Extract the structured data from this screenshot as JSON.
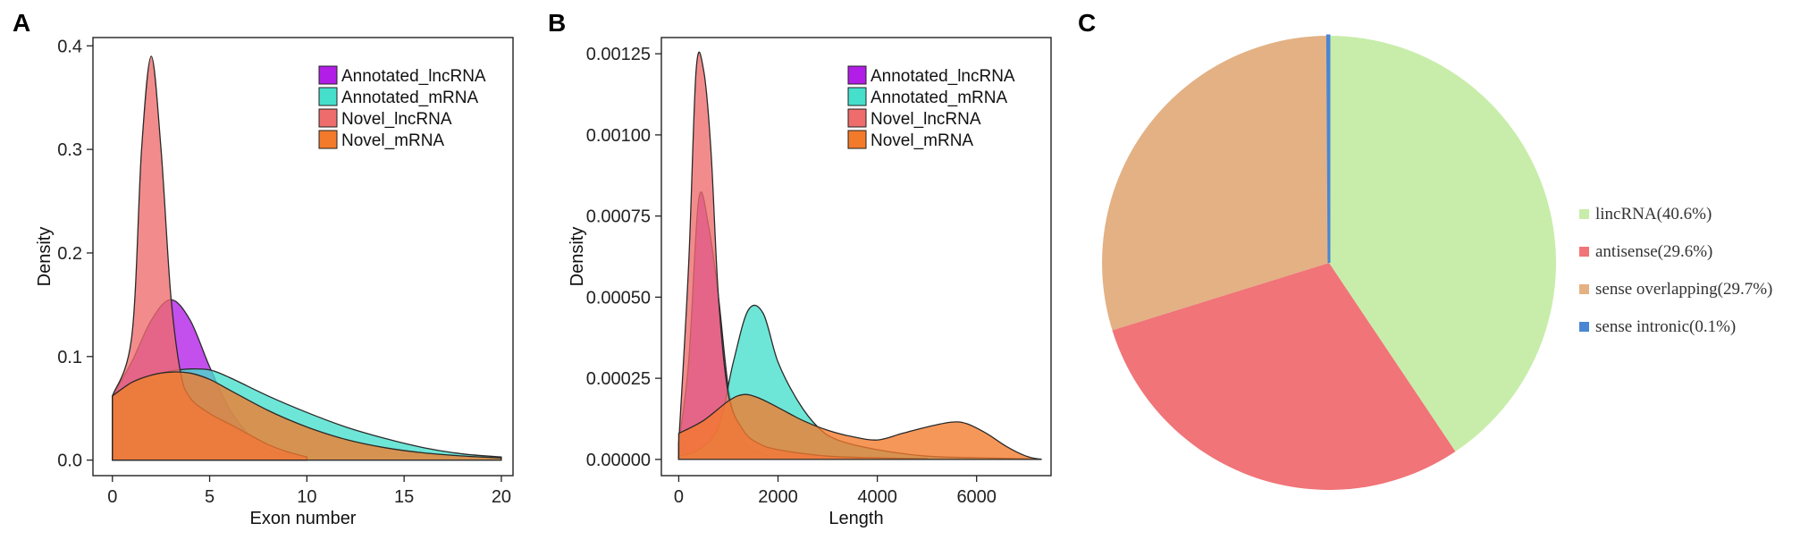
{
  "panels": {
    "a": "A",
    "b": "B",
    "c": "C"
  },
  "chart_data": [
    {
      "type": "area",
      "id": "A",
      "title": "",
      "xlabel": "Exon number",
      "ylabel": "Density",
      "xlim": [
        -1,
        20.6
      ],
      "ylim": [
        -0.015,
        0.408
      ],
      "xticks": [
        "0",
        "5",
        "10",
        "15",
        "20"
      ],
      "yticks": [
        "0.0",
        "0.1",
        "0.2",
        "0.3",
        "0.4"
      ],
      "legend": "top-right",
      "series": [
        {
          "name": "Annotated_lncRNA",
          "color": "#b21ee8",
          "x": [
            0,
            1,
            2,
            3,
            4,
            5,
            6,
            7,
            8,
            10
          ],
          "y": [
            0.062,
            0.095,
            0.135,
            0.155,
            0.135,
            0.09,
            0.05,
            0.025,
            0.01,
            0.002
          ]
        },
        {
          "name": "Annotated_mRNA",
          "color": "#45dfcc",
          "x": [
            0,
            1,
            2,
            3,
            4,
            5,
            6,
            8,
            10,
            12,
            14,
            16,
            18,
            20
          ],
          "y": [
            0.062,
            0.075,
            0.082,
            0.086,
            0.088,
            0.087,
            0.08,
            0.062,
            0.046,
            0.032,
            0.021,
            0.012,
            0.006,
            0.003
          ]
        },
        {
          "name": "Novel_lncRNA",
          "color": "#ee6c6c",
          "x": [
            0,
            1,
            1.5,
            2,
            2.5,
            3,
            3.5,
            4,
            5,
            6,
            7,
            8,
            9,
            10
          ],
          "y": [
            0.062,
            0.12,
            0.3,
            0.39,
            0.3,
            0.16,
            0.085,
            0.06,
            0.045,
            0.035,
            0.025,
            0.015,
            0.008,
            0.003
          ]
        },
        {
          "name": "Novel_mRNA",
          "color": "#f37a2b",
          "x": [
            0,
            1,
            2,
            3,
            4,
            5,
            6,
            8,
            10,
            12,
            14,
            16,
            18,
            20
          ],
          "y": [
            0.062,
            0.075,
            0.082,
            0.085,
            0.084,
            0.078,
            0.068,
            0.048,
            0.032,
            0.02,
            0.012,
            0.007,
            0.004,
            0.002
          ]
        }
      ]
    },
    {
      "type": "area",
      "id": "B",
      "title": "",
      "xlabel": "Length",
      "ylabel": "Density",
      "xlim": [
        -350,
        7500
      ],
      "ylim": [
        -5e-05,
        0.0013
      ],
      "xticks": [
        "0",
        "2000",
        "4000",
        "6000"
      ],
      "yticks": [
        "0.00000",
        "0.00025",
        "0.00050",
        "0.00075",
        "0.00100",
        "0.00125"
      ],
      "legend": "top-right",
      "series": [
        {
          "name": "Annotated_lncRNA",
          "color": "#b21ee8",
          "x": [
            0,
            200,
            400,
            600,
            800,
            1000,
            1200,
            1400,
            1800
          ],
          "y": [
            5e-05,
            0.0003,
            0.0008,
            0.00072,
            0.0005,
            0.00022,
            0.0001,
            4e-05,
            1e-05
          ]
        },
        {
          "name": "Annotated_mRNA",
          "color": "#45dfcc",
          "x": [
            0,
            400,
            800,
            1100,
            1400,
            1700,
            2000,
            2400,
            2800,
            3200,
            4000,
            5000,
            6000,
            7300
          ],
          "y": [
            1e-05,
            3e-05,
            0.0001,
            0.0003,
            0.00046,
            0.00045,
            0.0003,
            0.00018,
            0.0001,
            6e-05,
            3e-05,
            1e-05,
            5e-06,
            1e-06
          ]
        },
        {
          "name": "Novel_lncRNA",
          "color": "#ee6c6c",
          "x": [
            0,
            200,
            350,
            500,
            650,
            800,
            1000,
            1300,
            1600,
            2000,
            3000,
            4000,
            5000
          ],
          "y": [
            5e-05,
            0.0006,
            0.0012,
            0.0012,
            0.00095,
            0.0005,
            0.0002,
            9e-05,
            5e-05,
            3e-05,
            1e-05,
            5e-06,
            2e-06
          ]
        },
        {
          "name": "Novel_mRNA",
          "color": "#f37a2b",
          "x": [
            0,
            500,
            1000,
            1300,
            1600,
            2000,
            2500,
            3000,
            3500,
            4000,
            4500,
            5000,
            5500,
            5800,
            6200,
            6600,
            7000,
            7300
          ],
          "y": [
            8e-05,
            0.00012,
            0.00018,
            0.0002,
            0.00019,
            0.00016,
            0.00012,
            9e-05,
            7e-05,
            6e-05,
            8e-05,
            0.0001,
            0.000115,
            0.00011,
            8e-05,
            4e-05,
            1e-05,
            0.0
          ]
        }
      ]
    },
    {
      "type": "pie",
      "id": "C",
      "title": "",
      "legend": "right",
      "slices": [
        {
          "label": "lincRNA(40.6%)",
          "value": 40.6,
          "color": "#c8edaa"
        },
        {
          "label": "antisense(29.6%)",
          "value": 29.6,
          "color": "#f07478"
        },
        {
          "label": "sense overlapping(29.7%)",
          "value": 29.7,
          "color": "#e3b184"
        },
        {
          "label": "sense intronic(0.1%)",
          "value": 0.1,
          "color": "#4a86d4"
        }
      ]
    }
  ]
}
